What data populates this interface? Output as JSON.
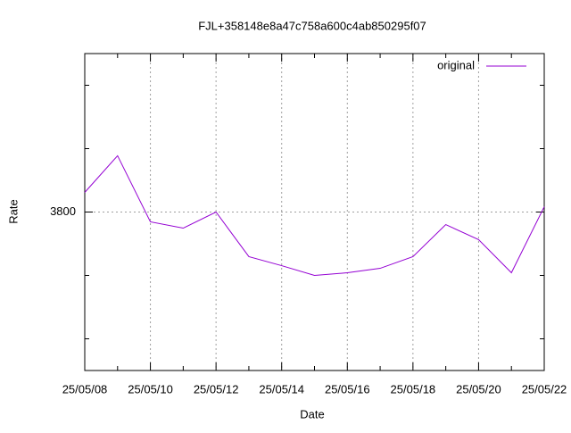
{
  "chart_data": {
    "type": "line",
    "title": "FJL+358148e8a47c758a600c4ab850295f07",
    "x_label": "Date",
    "y_label": "Rate",
    "categories": [
      "25/05/08",
      null,
      "25/05/10",
      null,
      "25/05/12",
      null,
      "25/05/14",
      null,
      "25/05/16",
      null,
      "25/05/18",
      null,
      "25/05/20",
      null,
      "25/05/22"
    ],
    "series": [
      {
        "name": "original",
        "color": "#9400d3",
        "values": [
          3815.5,
          3844.4,
          3792.3,
          3787.3,
          3800,
          3764.8,
          3757.7,
          3750,
          3752.1,
          3755.6,
          3764.8,
          3790.1,
          3778.2,
          3752.1,
          3804.2
        ]
      }
    ],
    "ylim": [
      3675,
      3925
    ],
    "yticks": [
      3800
    ],
    "grid": true,
    "legend": "top-right"
  }
}
